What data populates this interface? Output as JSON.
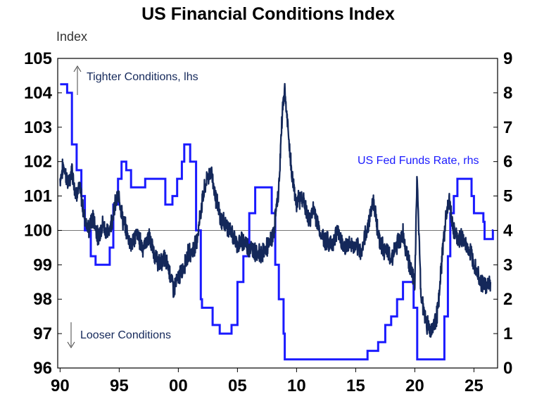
{
  "chart_data": {
    "type": "line",
    "title": "US Financial Conditions Index",
    "ylabel_left": "Index",
    "x_tick_labels": [
      "90",
      "95",
      "00",
      "05",
      "10",
      "15",
      "20",
      "25"
    ],
    "x_ticks": [
      1990,
      1995,
      2000,
      2005,
      2010,
      2015,
      2020,
      2025
    ],
    "xlim": [
      1989.8,
      2027.0
    ],
    "left_axis": {
      "ticks": [
        96,
        97,
        98,
        99,
        100,
        101,
        102,
        103,
        104,
        105
      ],
      "ylim": [
        96,
        105
      ]
    },
    "right_axis": {
      "ticks": [
        0,
        1,
        2,
        3,
        4,
        5,
        6,
        7,
        8,
        9
      ],
      "ylim": [
        0,
        9
      ]
    },
    "reference_line": 100,
    "annotations": {
      "tighter": "Tighter Conditions, lhs",
      "looser": "Looser Conditions",
      "fed": "US Fed Funds Rate, rhs"
    },
    "colors": {
      "fci": "#14285a",
      "fed": "#1a1aff",
      "axis": "#000000",
      "reference": "#777777"
    },
    "series": [
      {
        "axis": "left",
        "points": [
          [
            1990.0,
            101.5
          ],
          [
            1990.3,
            101.9
          ],
          [
            1990.7,
            101.3
          ],
          [
            1991.0,
            101.8
          ],
          [
            1991.3,
            101.1
          ],
          [
            1991.7,
            101.2
          ],
          [
            1992.0,
            100.5
          ],
          [
            1992.4,
            100.0
          ],
          [
            1992.8,
            100.4
          ],
          [
            1993.2,
            99.8
          ],
          [
            1993.6,
            100.2
          ],
          [
            1994.0,
            99.9
          ],
          [
            1994.3,
            100.2
          ],
          [
            1994.7,
            100.8
          ],
          [
            1995.0,
            101.0
          ],
          [
            1995.3,
            100.3
          ],
          [
            1995.7,
            99.9
          ],
          [
            1996.0,
            99.6
          ],
          [
            1996.5,
            99.9
          ],
          [
            1997.0,
            99.5
          ],
          [
            1997.5,
            99.8
          ],
          [
            1998.0,
            99.3
          ],
          [
            1998.4,
            99.0
          ],
          [
            1998.8,
            99.2
          ],
          [
            1999.2,
            98.9
          ],
          [
            1999.6,
            98.3
          ],
          [
            2000.0,
            98.6
          ],
          [
            2000.4,
            98.9
          ],
          [
            2000.8,
            99.3
          ],
          [
            2001.2,
            99.4
          ],
          [
            2001.6,
            99.8
          ],
          [
            2002.0,
            100.8
          ],
          [
            2002.4,
            101.5
          ],
          [
            2002.8,
            101.7
          ],
          [
            2003.2,
            100.9
          ],
          [
            2003.6,
            100.3
          ],
          [
            2004.0,
            100.2
          ],
          [
            2004.5,
            99.9
          ],
          [
            2005.0,
            99.6
          ],
          [
            2005.5,
            99.7
          ],
          [
            2006.0,
            99.5
          ],
          [
            2006.5,
            99.4
          ],
          [
            2007.0,
            99.3
          ],
          [
            2007.5,
            99.5
          ],
          [
            2008.0,
            99.8
          ],
          [
            2008.5,
            101.2
          ],
          [
            2008.8,
            103.5
          ],
          [
            2009.0,
            104.1
          ],
          [
            2009.3,
            102.8
          ],
          [
            2009.6,
            101.6
          ],
          [
            2010.0,
            100.8
          ],
          [
            2010.5,
            101.0
          ],
          [
            2011.0,
            100.3
          ],
          [
            2011.5,
            100.6
          ],
          [
            2012.0,
            99.9
          ],
          [
            2012.5,
            99.7
          ],
          [
            2013.0,
            99.6
          ],
          [
            2013.5,
            100.0
          ],
          [
            2014.0,
            99.5
          ],
          [
            2014.5,
            99.6
          ],
          [
            2015.0,
            99.5
          ],
          [
            2015.5,
            99.4
          ],
          [
            2016.0,
            100.1
          ],
          [
            2016.5,
            100.9
          ],
          [
            2017.0,
            99.7
          ],
          [
            2017.5,
            99.4
          ],
          [
            2018.0,
            99.2
          ],
          [
            2018.5,
            99.6
          ],
          [
            2019.0,
            99.9
          ],
          [
            2019.3,
            99.4
          ],
          [
            2019.7,
            98.8
          ],
          [
            2020.0,
            98.5
          ],
          [
            2020.2,
            101.6
          ],
          [
            2020.5,
            98.2
          ],
          [
            2020.9,
            97.4
          ],
          [
            2021.3,
            97.1
          ],
          [
            2021.7,
            97.3
          ],
          [
            2022.0,
            97.8
          ],
          [
            2022.3,
            99.2
          ],
          [
            2022.6,
            100.3
          ],
          [
            2022.9,
            100.9
          ],
          [
            2023.2,
            100.1
          ],
          [
            2023.6,
            99.7
          ],
          [
            2024.0,
            99.8
          ],
          [
            2024.4,
            99.5
          ],
          [
            2024.8,
            99.3
          ],
          [
            2025.2,
            98.9
          ],
          [
            2025.6,
            98.5
          ],
          [
            2026.0,
            98.4
          ],
          [
            2026.4,
            98.5
          ]
        ]
      },
      {
        "name": "US Fed Funds Rate, rhs",
        "axis": "right",
        "points": [
          [
            1990.0,
            8.25
          ],
          [
            1990.6,
            8.0
          ],
          [
            1991.0,
            6.5
          ],
          [
            1991.4,
            5.75
          ],
          [
            1991.8,
            5.0
          ],
          [
            1992.1,
            4.0
          ],
          [
            1992.6,
            3.25
          ],
          [
            1993.0,
            3.0
          ],
          [
            1994.0,
            3.0
          ],
          [
            1994.2,
            3.5
          ],
          [
            1994.5,
            4.75
          ],
          [
            1994.9,
            5.5
          ],
          [
            1995.2,
            6.0
          ],
          [
            1995.6,
            5.75
          ],
          [
            1996.0,
            5.25
          ],
          [
            1997.0,
            5.25
          ],
          [
            1997.2,
            5.5
          ],
          [
            1998.6,
            5.5
          ],
          [
            1998.9,
            4.75
          ],
          [
            1999.5,
            5.0
          ],
          [
            1999.9,
            5.5
          ],
          [
            2000.3,
            6.0
          ],
          [
            2000.5,
            6.5
          ],
          [
            2000.9,
            6.5
          ],
          [
            2001.0,
            6.0
          ],
          [
            2001.5,
            4.0
          ],
          [
            2001.9,
            2.0
          ],
          [
            2002.0,
            1.75
          ],
          [
            2002.9,
            1.25
          ],
          [
            2003.5,
            1.0
          ],
          [
            2004.5,
            1.25
          ],
          [
            2005.0,
            2.5
          ],
          [
            2005.5,
            3.25
          ],
          [
            2006.0,
            4.5
          ],
          [
            2006.5,
            5.25
          ],
          [
            2007.6,
            5.25
          ],
          [
            2007.9,
            4.5
          ],
          [
            2008.2,
            3.0
          ],
          [
            2008.5,
            2.0
          ],
          [
            2008.9,
            1.0
          ],
          [
            2009.0,
            0.25
          ],
          [
            2015.9,
            0.25
          ],
          [
            2016.0,
            0.5
          ],
          [
            2016.9,
            0.75
          ],
          [
            2017.5,
            1.25
          ],
          [
            2018.0,
            1.5
          ],
          [
            2018.5,
            2.0
          ],
          [
            2019.0,
            2.5
          ],
          [
            2019.5,
            2.5
          ],
          [
            2019.9,
            1.75
          ],
          [
            2020.2,
            0.25
          ],
          [
            2022.2,
            0.25
          ],
          [
            2022.5,
            1.5
          ],
          [
            2022.8,
            3.25
          ],
          [
            2023.0,
            4.5
          ],
          [
            2023.3,
            5.0
          ],
          [
            2023.6,
            5.5
          ],
          [
            2024.6,
            5.5
          ],
          [
            2024.8,
            5.0
          ],
          [
            2025.0,
            4.5
          ],
          [
            2025.8,
            4.25
          ],
          [
            2025.9,
            3.75
          ],
          [
            2026.5,
            3.75
          ],
          [
            2026.6,
            4.0
          ]
        ]
      }
    ]
  }
}
